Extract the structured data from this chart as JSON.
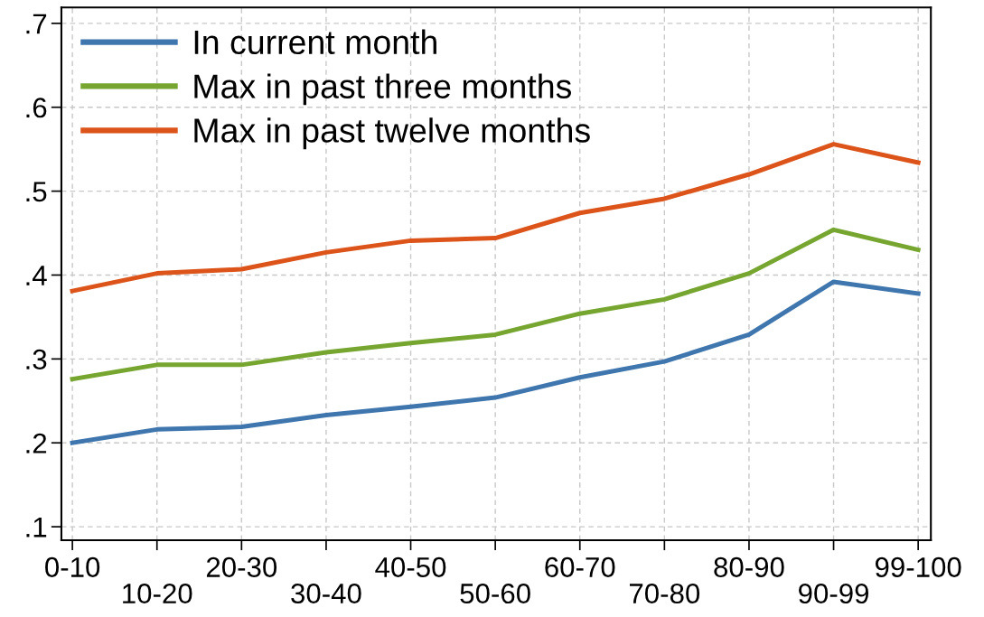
{
  "chart_data": {
    "type": "line",
    "categories": [
      "0-10",
      "10-20",
      "20-30",
      "30-40",
      "40-50",
      "50-60",
      "60-70",
      "70-80",
      "80-90",
      "90-99",
      "99-100"
    ],
    "series": [
      {
        "name": "In current month",
        "color": "#3f76ae",
        "values": [
          0.2,
          0.216,
          0.219,
          0.233,
          0.243,
          0.254,
          0.278,
          0.297,
          0.329,
          0.392,
          0.378
        ]
      },
      {
        "name": "Max in past three months",
        "color": "#76a630",
        "values": [
          0.276,
          0.293,
          0.293,
          0.308,
          0.319,
          0.329,
          0.354,
          0.371,
          0.402,
          0.454,
          0.43
        ]
      },
      {
        "name": "Max in past twelve months",
        "color": "#dc5419",
        "values": [
          0.381,
          0.402,
          0.407,
          0.427,
          0.441,
          0.444,
          0.474,
          0.491,
          0.52,
          0.556,
          0.534
        ]
      }
    ],
    "ylim": [
      0.084,
      0.719
    ],
    "yticks": [
      {
        "value": 0.1,
        "label": ".1"
      },
      {
        "value": 0.2,
        "label": ".2"
      },
      {
        "value": 0.3,
        "label": ".3"
      },
      {
        "value": 0.4,
        "label": ".4"
      },
      {
        "value": 0.5,
        "label": ".5"
      },
      {
        "value": 0.6,
        "label": ".6"
      },
      {
        "value": 0.7,
        "label": ".7"
      }
    ],
    "grid": true,
    "legend": "top left",
    "marker": "none",
    "line_style": "solid"
  }
}
